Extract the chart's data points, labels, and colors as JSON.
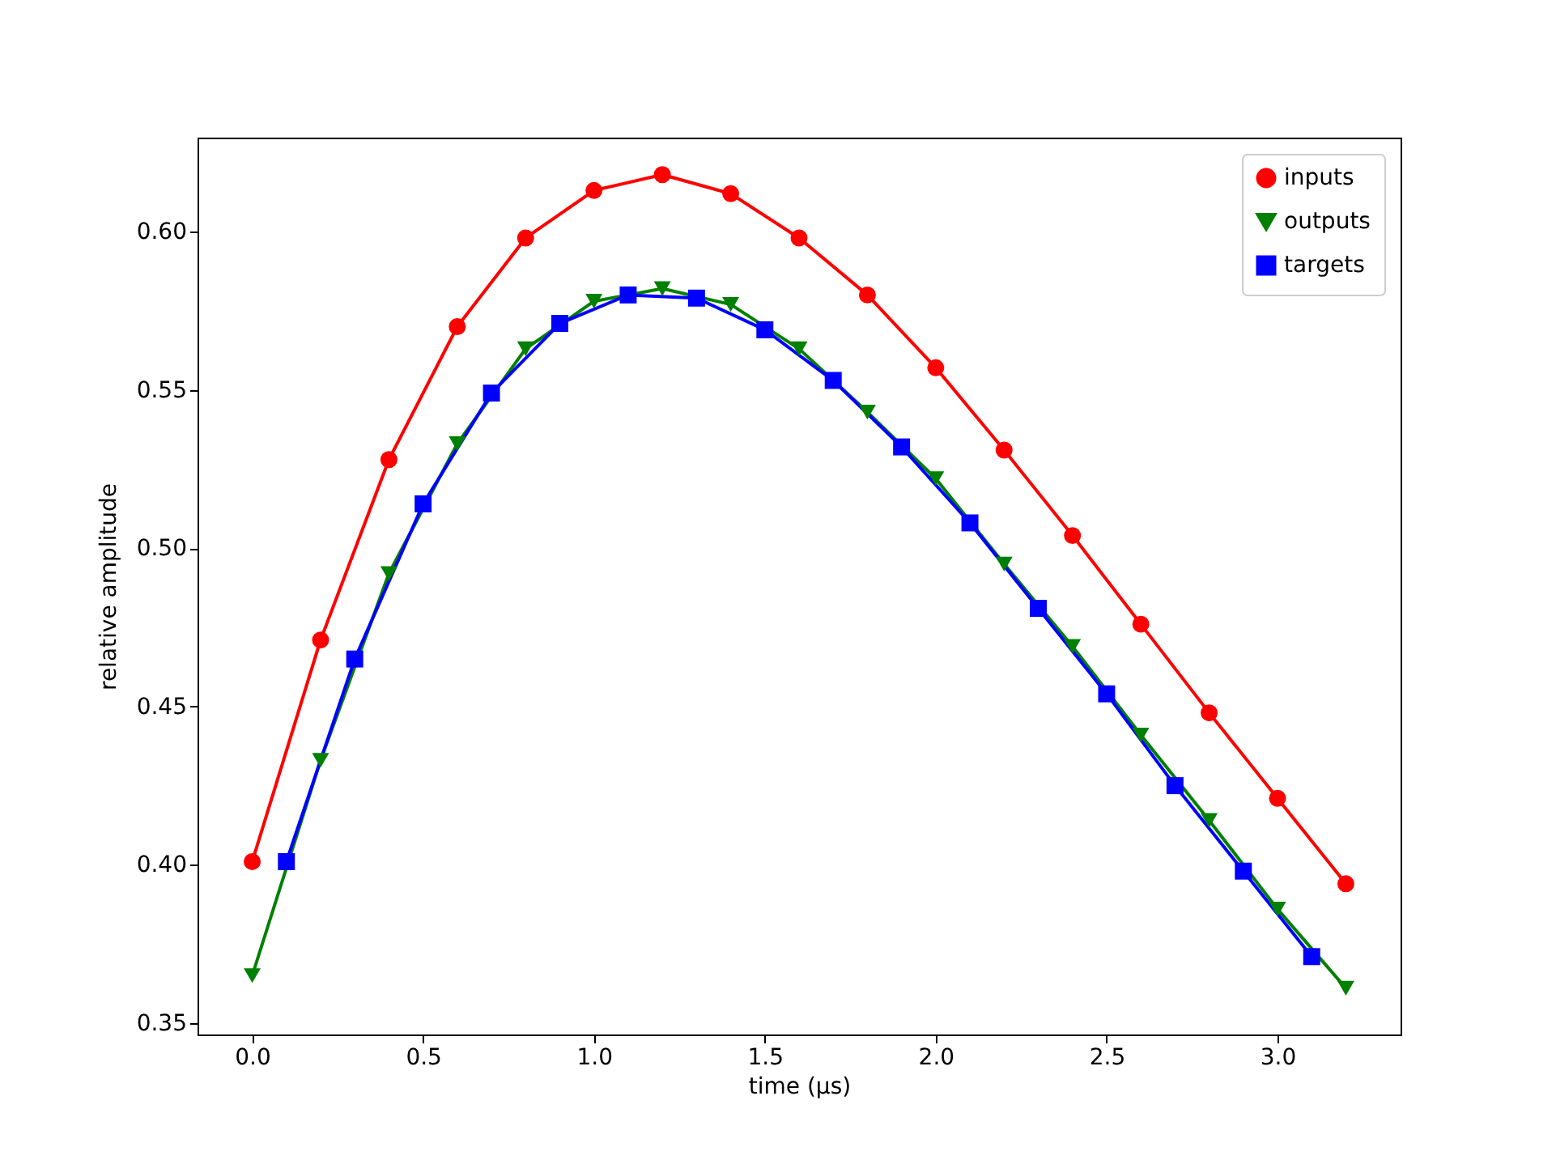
{
  "chart_data": {
    "type": "line",
    "xlabel": "time (μs)",
    "ylabel": "relative amplitude",
    "legend": "top right",
    "grid": false,
    "line_style": "solid",
    "xlim": [
      -0.16,
      3.36
    ],
    "ylim": [
      0.3464,
      0.6297
    ],
    "xticks": [
      {
        "value": 0,
        "label": "0.0"
      },
      {
        "value": 0.5,
        "label": "0.5"
      },
      {
        "value": 1,
        "label": "1.0"
      },
      {
        "value": 1.5,
        "label": "1.5"
      },
      {
        "value": 2,
        "label": "2.0"
      },
      {
        "value": 2.5,
        "label": "2.5"
      },
      {
        "value": 3,
        "label": "3.0"
      }
    ],
    "yticks": [
      0.35,
      {
        "value": 0.4,
        "label": "0.40"
      },
      0.45,
      {
        "value": 0.5,
        "label": "0.50"
      },
      0.55,
      {
        "value": 0.6,
        "label": "0.60"
      }
    ],
    "series": [
      {
        "name": "inputs",
        "color": "#ff0000",
        "marker": "circle",
        "x": [
          0,
          0.2,
          0.4,
          0.6,
          0.8,
          1.0,
          1.2,
          1.4,
          1.6,
          1.8,
          2.0,
          2.2,
          2.4,
          2.6,
          2.8,
          3.0,
          3.2
        ],
        "values": [
          0.401,
          0.471,
          0.528,
          0.57,
          0.598,
          0.613,
          0.618,
          0.612,
          0.598,
          0.58,
          0.557,
          0.531,
          0.504,
          0.476,
          0.448,
          0.421,
          0.394
        ]
      },
      {
        "name": "outputs",
        "color": "#008000",
        "marker": "triangle",
        "x": [
          0,
          0.2,
          0.4,
          0.6,
          0.8,
          1.0,
          1.2,
          1.4,
          1.6,
          1.8,
          2.0,
          2.2,
          2.4,
          2.6,
          2.8,
          3.0,
          3.2
        ],
        "values": [
          0.365,
          0.433,
          0.492,
          0.533,
          0.563,
          0.578,
          0.582,
          0.577,
          0.563,
          0.543,
          0.522,
          0.495,
          0.469,
          0.441,
          0.414,
          0.386,
          0.361
        ]
      },
      {
        "name": "targets",
        "color": "#0000ff",
        "marker": "square",
        "x": [
          0.1,
          0.3,
          0.5,
          0.7,
          0.9,
          1.1,
          1.3,
          1.5,
          1.7,
          1.9,
          2.1,
          2.3,
          2.5,
          2.7,
          2.9,
          3.1
        ],
        "values": [
          0.401,
          0.465,
          0.514,
          0.549,
          0.571,
          0.58,
          0.579,
          0.569,
          0.553,
          0.532,
          0.508,
          0.481,
          0.454,
          0.425,
          0.398,
          0.371
        ]
      }
    ]
  }
}
